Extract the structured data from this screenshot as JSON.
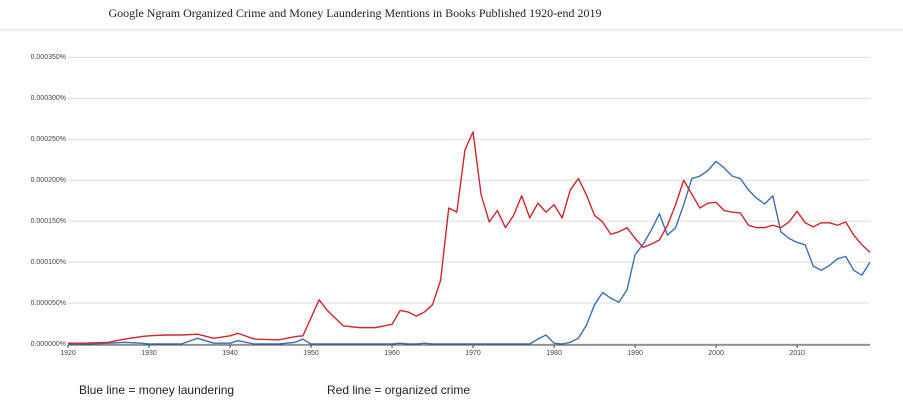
{
  "chart_data": {
    "type": "line",
    "title": "Google Ngram Organized Crime and Money Laundering Mentions in Books Published 1920-end 2019",
    "x": [
      1920,
      1922,
      1925,
      1927,
      1929,
      1930,
      1932,
      1934,
      1936,
      1938,
      1940,
      1941,
      1943,
      1946,
      1948,
      1949,
      1950,
      1951,
      1952,
      1954,
      1956,
      1958,
      1960,
      1961,
      1962,
      1963,
      1964,
      1965,
      1966,
      1967,
      1968,
      1969,
      1970,
      1971,
      1972,
      1973,
      1974,
      1975,
      1976,
      1977,
      1978,
      1979,
      1980,
      1981,
      1982,
      1983,
      1984,
      1985,
      1986,
      1987,
      1988,
      1989,
      1990,
      1991,
      1992,
      1993,
      1994,
      1995,
      1996,
      1997,
      1998,
      1999,
      2000,
      2001,
      2002,
      2003,
      2004,
      2005,
      2006,
      2007,
      2008,
      2009,
      2010,
      2011,
      2012,
      2013,
      2014,
      2015,
      2016,
      2017,
      2018,
      2019
    ],
    "series": [
      {
        "name": "Blue line = money laundering",
        "color": "#3a6fb8",
        "values": [
          0,
          0,
          1e-06,
          2e-06,
          1e-06,
          0,
          0,
          0,
          7e-06,
          1e-06,
          1e-06,
          4e-06,
          0,
          0,
          2e-06,
          6e-06,
          0,
          0,
          0,
          0,
          0,
          0,
          0,
          1e-06,
          0,
          0,
          1e-06,
          0,
          0,
          0,
          0,
          0,
          0,
          0,
          0,
          0,
          0,
          0,
          0,
          0,
          6e-06,
          1.1e-05,
          1e-06,
          0,
          2e-06,
          7e-06,
          2.3e-05,
          4.8e-05,
          6.3e-05,
          5.6e-05,
          5.1e-05,
          6.6e-05,
          0.000109,
          0.000122,
          0.000139,
          0.000159,
          0.000133,
          0.000142,
          0.00017,
          0.000202,
          0.000205,
          0.000212,
          0.000223,
          0.000215,
          0.000205,
          0.000202,
          0.000188,
          0.000178,
          0.000171,
          0.000181,
          0.000137,
          0.000129,
          0.000124,
          0.000121,
          9.5e-05,
          9e-05,
          9.6e-05,
          0.000104,
          0.000107,
          9e-05,
          8.4e-05,
          0.0001
        ]
      },
      {
        "name": "Red line = organized crime",
        "color": "#d0262d",
        "values": [
          1e-06,
          1e-06,
          2e-06,
          6e-06,
          9e-06,
          1e-05,
          1.1e-05,
          1.1e-05,
          1.2e-05,
          7e-06,
          1e-05,
          1.3e-05,
          6e-06,
          5e-06,
          9e-06,
          1e-05,
          3.2e-05,
          5.4e-05,
          4.1e-05,
          2.2e-05,
          2e-05,
          2e-05,
          2.4e-05,
          4.1e-05,
          3.9e-05,
          3.4e-05,
          3.9e-05,
          4.8e-05,
          7.8e-05,
          0.000166,
          0.000161,
          0.000237,
          0.000259,
          0.000182,
          0.000149,
          0.000163,
          0.000142,
          0.000157,
          0.000181,
          0.000154,
          0.000172,
          0.000161,
          0.00017,
          0.000154,
          0.000188,
          0.000202,
          0.000182,
          0.000157,
          0.000149,
          0.000134,
          0.000137,
          0.000142,
          0.000129,
          0.000118,
          0.000122,
          0.000127,
          0.000145,
          0.00017,
          0.0002,
          0.000183,
          0.000166,
          0.000172,
          0.000173,
          0.000163,
          0.000161,
          0.00016,
          0.000145,
          0.000142,
          0.000142,
          0.000145,
          0.000142,
          0.000149,
          0.000162,
          0.000148,
          0.000143,
          0.000148,
          0.000148,
          0.000145,
          0.000149,
          0.000133,
          0.000121,
          0.000112
        ]
      }
    ],
    "xlim": [
      1920,
      2019
    ],
    "xticks": [
      1920,
      1930,
      1940,
      1950,
      1960,
      1970,
      1980,
      1990,
      2000,
      2010
    ],
    "ylim": [
      0,
      0.00037
    ],
    "yticks": [
      {
        "value": 0,
        "label": "0.000000%"
      },
      {
        "value": 5e-05,
        "label": "0.000050%"
      },
      {
        "value": 0.0001,
        "label": "0.000100%"
      },
      {
        "value": 0.00015,
        "label": "0.000150%"
      },
      {
        "value": 0.0002,
        "label": "0.000200%"
      },
      {
        "value": 0.00025,
        "label": "0.000250%"
      },
      {
        "value": 0.0003,
        "label": "0.000300%"
      },
      {
        "value": 0.00035,
        "label": "0.000350%"
      }
    ],
    "grid": true
  }
}
